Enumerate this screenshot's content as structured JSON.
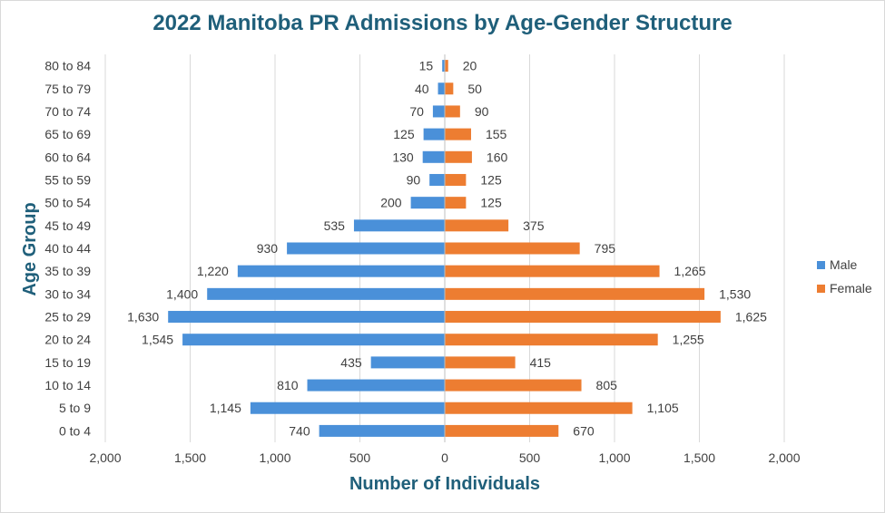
{
  "chart_data": {
    "type": "bar",
    "orientation": "horizontal",
    "layout": "population-pyramid",
    "title": "2022 Manitoba PR Admissions by Age-Gender Structure",
    "xlabel": "Number of Individuals",
    "ylabel": "Age Group",
    "categories": [
      "0 to 4",
      "5 to 9",
      "10 to 14",
      "15 to 19",
      "20 to 24",
      "25 to 29",
      "30 to 34",
      "35 to 39",
      "40 to 44",
      "45 to 49",
      "50 to 54",
      "55 to 59",
      "60 to 64",
      "65 to 69",
      "70 to 74",
      "75 to 79",
      "80 to 84"
    ],
    "series": [
      {
        "name": "Male",
        "color": "#4a90d9",
        "side": "left",
        "values": [
          740,
          1145,
          810,
          435,
          1545,
          1630,
          1400,
          1220,
          930,
          535,
          200,
          90,
          130,
          125,
          70,
          40,
          15
        ],
        "value_labels": [
          "740",
          "1,145",
          "810",
          "435",
          "1,545",
          "1,630",
          "1,400",
          "1,220",
          "930",
          "535",
          "200",
          "90",
          "130",
          "125",
          "70",
          "40",
          "15"
        ]
      },
      {
        "name": "Female",
        "color": "#ed7d31",
        "side": "right",
        "values": [
          670,
          1105,
          805,
          415,
          1255,
          1625,
          1530,
          1265,
          795,
          375,
          125,
          125,
          160,
          155,
          90,
          50,
          20
        ],
        "value_labels": [
          "670",
          "1,105",
          "805",
          "415",
          "1,255",
          "1,625",
          "1,530",
          "1,265",
          "795",
          "375",
          "125",
          "125",
          "160",
          "155",
          "90",
          "50",
          "20"
        ]
      }
    ],
    "xlim": [
      -2000,
      2000
    ],
    "xticks": [
      -2000,
      -1500,
      -1000,
      -500,
      0,
      500,
      1000,
      1500,
      2000
    ],
    "xtick_labels": [
      "2,000",
      "1,500",
      "1,000",
      "500",
      "0",
      "500",
      "1,000",
      "1,500",
      "2,000"
    ],
    "grid": "vertical",
    "legend_position": "right",
    "title_color": "#1f5f7a"
  }
}
